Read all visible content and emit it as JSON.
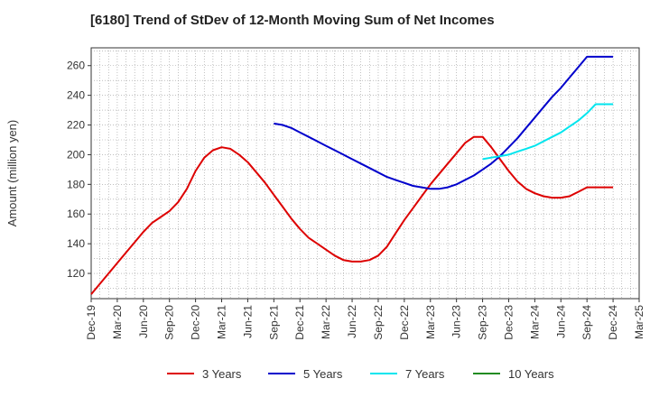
{
  "chart_data": {
    "type": "line",
    "title": "[6180]  Trend of StDev of 12-Month Moving Sum of Net Incomes",
    "xlabel": "",
    "ylabel": "Amount (million yen)",
    "ylim": [
      103,
      272
    ],
    "yticks": [
      120,
      140,
      160,
      180,
      200,
      220,
      240,
      260
    ],
    "xticks": [
      "Dec-19",
      "Mar-20",
      "Jun-20",
      "Sep-20",
      "Dec-20",
      "Mar-21",
      "Jun-21",
      "Sep-21",
      "Dec-21",
      "Mar-22",
      "Jun-22",
      "Sep-22",
      "Dec-22",
      "Mar-23",
      "Jun-23",
      "Sep-23",
      "Dec-23",
      "Mar-24",
      "Jun-24",
      "Sep-24",
      "Dec-24",
      "Mar-25"
    ],
    "grid": true,
    "legend_position": "bottom",
    "series": [
      {
        "name": "3 Years",
        "color": "#dd0000",
        "x": [
          "Dec-19",
          "Jan-20",
          "Feb-20",
          "Mar-20",
          "Apr-20",
          "May-20",
          "Jun-20",
          "Jul-20",
          "Aug-20",
          "Sep-20",
          "Oct-20",
          "Nov-20",
          "Dec-20",
          "Jan-21",
          "Feb-21",
          "Mar-21",
          "Apr-21",
          "May-21",
          "Jun-21",
          "Jul-21",
          "Aug-21",
          "Sep-21",
          "Oct-21",
          "Nov-21",
          "Dec-21",
          "Jan-22",
          "Feb-22",
          "Mar-22",
          "Apr-22",
          "May-22",
          "Jun-22",
          "Jul-22",
          "Aug-22",
          "Sep-22",
          "Oct-22",
          "Nov-22",
          "Dec-22",
          "Jan-23",
          "Feb-23",
          "Mar-23",
          "Apr-23",
          "May-23",
          "Jun-23",
          "Jul-23",
          "Aug-23",
          "Sep-23",
          "Oct-23",
          "Nov-23",
          "Dec-23",
          "Jan-24",
          "Feb-24",
          "Mar-24",
          "Apr-24",
          "May-24",
          "Jun-24",
          "Jul-24",
          "Aug-24",
          "Sep-24",
          "Oct-24",
          "Nov-24",
          "Dec-24"
        ],
        "values": [
          106,
          113,
          120,
          127,
          134,
          141,
          148,
          154,
          158,
          162,
          168,
          177,
          189,
          198,
          203,
          205,
          204,
          200,
          195,
          188,
          181,
          173,
          165,
          157,
          150,
          144,
          140,
          136,
          132,
          129,
          128,
          128,
          129,
          132,
          138,
          147,
          156,
          164,
          172,
          180,
          187,
          194,
          201,
          208,
          212,
          212,
          205,
          197,
          189,
          182,
          177,
          174,
          172,
          171,
          171,
          172,
          175,
          178,
          178,
          178,
          178
        ]
      },
      {
        "name": "5 Years",
        "color": "#0000cc",
        "x": [
          "Sep-21",
          "Oct-21",
          "Nov-21",
          "Dec-21",
          "Jan-22",
          "Feb-22",
          "Mar-22",
          "Apr-22",
          "May-22",
          "Jun-22",
          "Jul-22",
          "Aug-22",
          "Sep-22",
          "Oct-22",
          "Nov-22",
          "Dec-22",
          "Jan-23",
          "Feb-23",
          "Mar-23",
          "Apr-23",
          "May-23",
          "Jun-23",
          "Jul-23",
          "Aug-23",
          "Sep-23",
          "Oct-23",
          "Nov-23",
          "Dec-23",
          "Jan-24",
          "Feb-24",
          "Mar-24",
          "Apr-24",
          "May-24",
          "Jun-24",
          "Jul-24",
          "Aug-24",
          "Sep-24",
          "Oct-24",
          "Nov-24",
          "Dec-24"
        ],
        "values": [
          221,
          220,
          218,
          215,
          212,
          209,
          206,
          203,
          200,
          197,
          194,
          191,
          188,
          185,
          183,
          181,
          179,
          178,
          177,
          177,
          178,
          180,
          183,
          186,
          190,
          194,
          199,
          205,
          211,
          218,
          225,
          232,
          239,
          245,
          252,
          259,
          266,
          266,
          266,
          266
        ]
      },
      {
        "name": "7 Years",
        "color": "#00e5ee",
        "x": [
          "Sep-23",
          "Oct-23",
          "Nov-23",
          "Dec-23",
          "Jan-24",
          "Feb-24",
          "Mar-24",
          "Apr-24",
          "May-24",
          "Jun-24",
          "Jul-24",
          "Aug-24",
          "Sep-24",
          "Oct-24",
          "Nov-24",
          "Dec-24"
        ],
        "values": [
          197,
          198,
          199,
          200,
          202,
          204,
          206,
          209,
          212,
          215,
          219,
          223,
          228,
          234,
          234,
          234
        ]
      },
      {
        "name": "10 Years",
        "color": "#228b22",
        "x": [],
        "values": []
      }
    ]
  }
}
